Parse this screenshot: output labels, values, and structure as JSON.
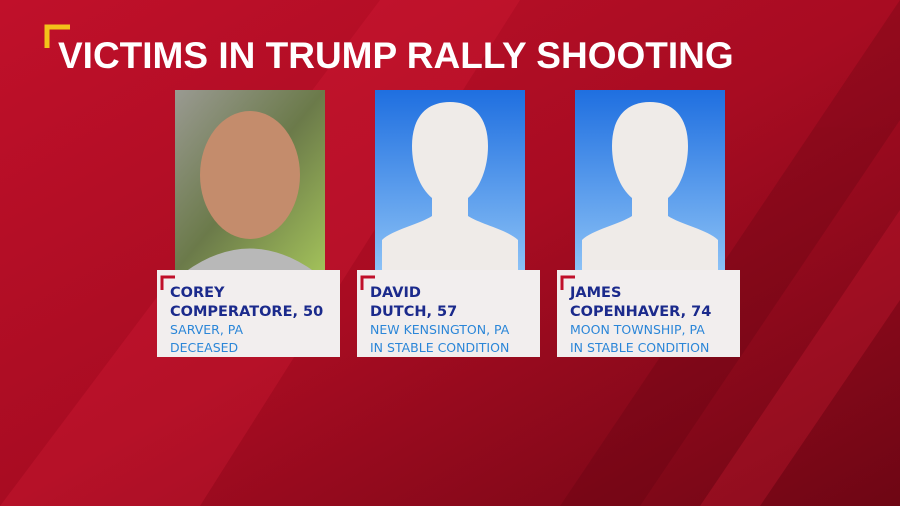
{
  "header": {
    "title": "VICTIMS IN TRUMP RALLY SHOOTING"
  },
  "victims": [
    {
      "name_lines": [
        "COREY",
        "COMPERATORE, 50"
      ],
      "location": "SARVER, PA",
      "status": "DECEASED",
      "photo": "portrait"
    },
    {
      "name_lines": [
        "DAVID",
        "DUTCH, 57"
      ],
      "location": "NEW KENSINGTON, PA",
      "status": "IN STABLE CONDITION",
      "photo": "silhouette"
    },
    {
      "name_lines": [
        "JAMES",
        "COPENHAVER, 74"
      ],
      "location": "MOON TOWNSHIP, PA",
      "status": "IN STABLE CONDITION",
      "photo": "silhouette"
    }
  ]
}
